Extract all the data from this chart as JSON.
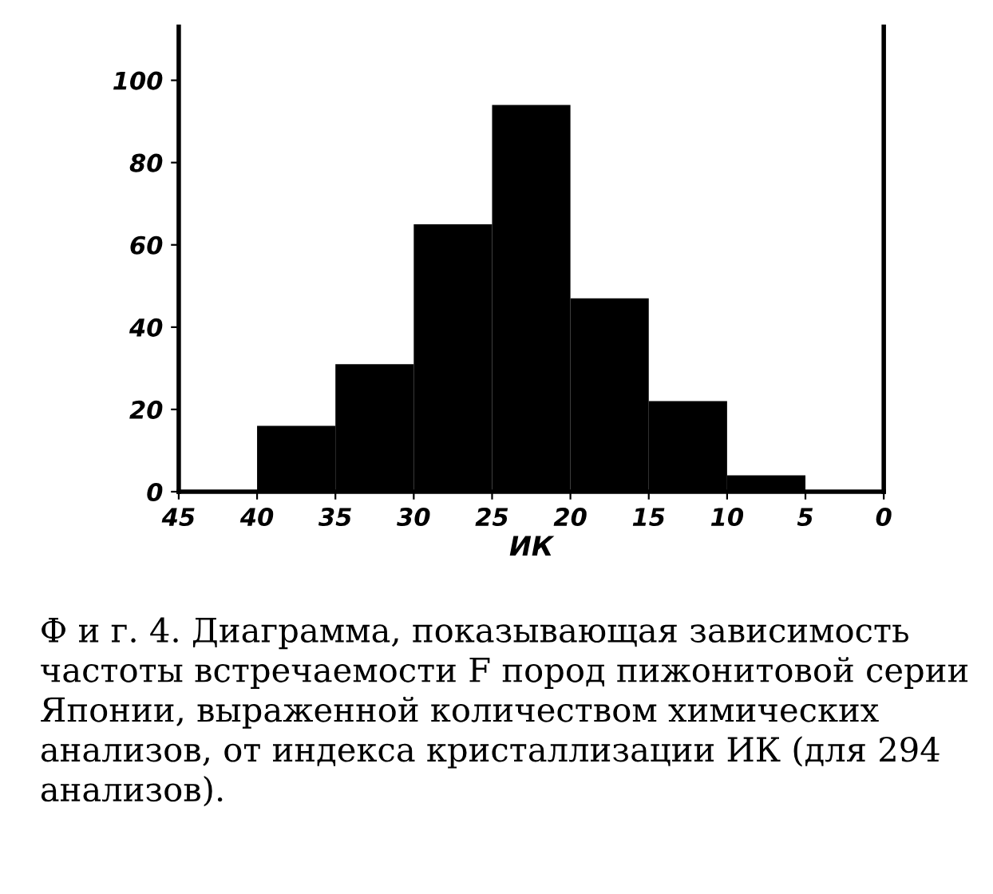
{
  "chart_data": {
    "type": "histogram",
    "xlabel": "ИК",
    "bins": [
      40,
      35,
      30,
      25,
      20,
      15,
      10,
      5
    ],
    "values": [
      16,
      31,
      65,
      94,
      47,
      22,
      4
    ],
    "color": "#000000",
    "xlim": [
      45,
      0
    ],
    "xticks": [
      45,
      40,
      35,
      30,
      25,
      20,
      15,
      10,
      5,
      0
    ],
    "ylim": [
      0,
      113
    ],
    "yticks": [
      0,
      20,
      40,
      60,
      80,
      100
    ],
    "grid": false,
    "annotations": [
      "Ф и г. 4. Диаграмма, показывающая зависимость частоты встречаемости F пород пижонитовой серии Японии, выраженной количеством химических анализов, от индекса кристаллизации ИК (для 294 анализов)."
    ]
  }
}
